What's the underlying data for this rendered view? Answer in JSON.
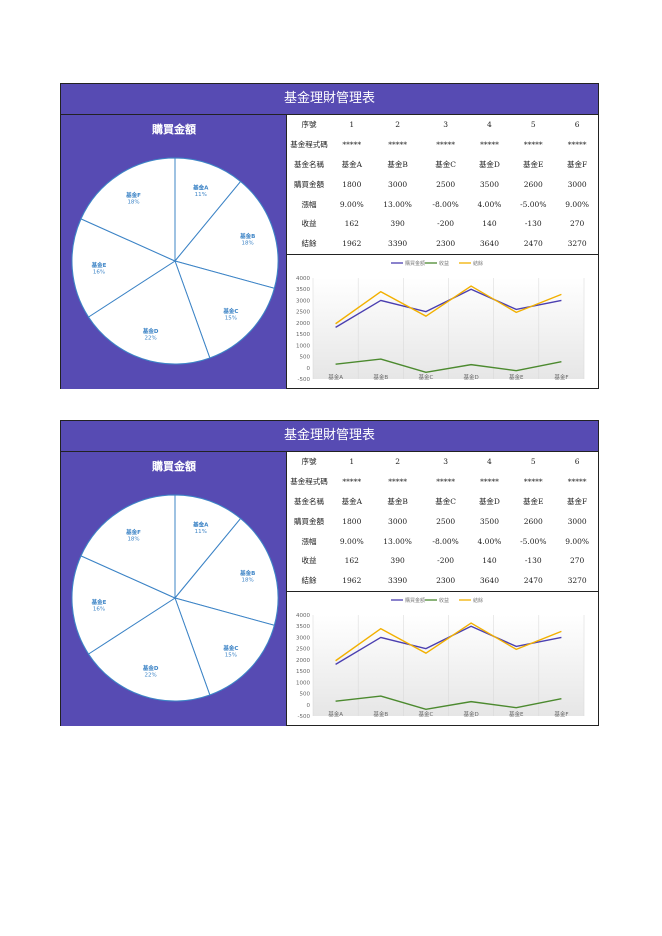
{
  "cards": [
    {
      "title": "基金理財管理表",
      "pie_title": "購買金額",
      "rows": [
        {
          "label": "序號",
          "values": [
            "1",
            "2",
            "3",
            "4",
            "5",
            "6"
          ]
        },
        {
          "label": "基金程式碼",
          "values": [
            "*****",
            "*****",
            "*****",
            "*****",
            "*****",
            "*****"
          ]
        },
        {
          "label": "基金名稱",
          "values": [
            "基金A",
            "基金B",
            "基金C",
            "基金D",
            "基金E",
            "基金F"
          ]
        },
        {
          "label": "購買金額",
          "values": [
            "1800",
            "3000",
            "2500",
            "3500",
            "2600",
            "3000"
          ]
        },
        {
          "label": "漲幅",
          "values": [
            "9.00%",
            "13.00%",
            "-8.00%",
            "4.00%",
            "-5.00%",
            "9.00%"
          ]
        },
        {
          "label": "收益",
          "values": [
            "162",
            "390",
            "-200",
            "140",
            "-130",
            "270"
          ]
        },
        {
          "label": "結餘",
          "values": [
            "1962",
            "3390",
            "2300",
            "3640",
            "2470",
            "3270"
          ]
        }
      ]
    },
    {
      "title": "基金理財管理表",
      "pie_title": "購買金額",
      "rows": [
        {
          "label": "序號",
          "values": [
            "1",
            "2",
            "3",
            "4",
            "5",
            "6"
          ]
        },
        {
          "label": "基金程式碼",
          "values": [
            "*****",
            "*****",
            "*****",
            "*****",
            "*****",
            "*****"
          ]
        },
        {
          "label": "基金名稱",
          "values": [
            "基金A",
            "基金B",
            "基金C",
            "基金D",
            "基金E",
            "基金F"
          ]
        },
        {
          "label": "購買金額",
          "values": [
            "1800",
            "3000",
            "2500",
            "3500",
            "2600",
            "3000"
          ]
        },
        {
          "label": "漲幅",
          "values": [
            "9.00%",
            "13.00%",
            "-8.00%",
            "4.00%",
            "-5.00%",
            "9.00%"
          ]
        },
        {
          "label": "收益",
          "values": [
            "162",
            "390",
            "-200",
            "140",
            "-130",
            "270"
          ]
        },
        {
          "label": "結餘",
          "values": [
            "1962",
            "3390",
            "2300",
            "3640",
            "2470",
            "3270"
          ]
        }
      ]
    }
  ],
  "chart_data": [
    {
      "type": "pie",
      "title": "購買金額",
      "categories": [
        "基金A",
        "基金B",
        "基金C",
        "基金D",
        "基金E",
        "基金F"
      ],
      "values": [
        1800,
        3000,
        2500,
        3500,
        2600,
        3000
      ],
      "percent_labels": [
        "11%",
        "18%",
        "15%",
        "22%",
        "16%",
        "18%"
      ],
      "colors": {
        "fill": "#ffffff",
        "stroke": "#3d84c6",
        "label": "#3d84c6"
      }
    },
    {
      "type": "line",
      "categories": [
        "基金A",
        "基金B",
        "基金C",
        "基金D",
        "基金E",
        "基金F"
      ],
      "series": [
        {
          "name": "購買金額",
          "color": "#4b3fb0",
          "values": [
            1800,
            3000,
            2500,
            3500,
            2600,
            3000
          ]
        },
        {
          "name": "收益",
          "color": "#4c8a2f",
          "values": [
            162,
            390,
            -200,
            140,
            -130,
            270
          ]
        },
        {
          "name": "結餘",
          "color": "#f2b000",
          "values": [
            1962,
            3390,
            2300,
            3640,
            2470,
            3270
          ]
        }
      ],
      "yticks": [
        -500,
        0,
        500,
        1000,
        1500,
        2000,
        2500,
        3000,
        3500,
        4000
      ],
      "ylim": [
        -500,
        4000
      ],
      "legend": "top"
    },
    {
      "type": "pie",
      "title": "購買金額",
      "categories": [
        "基金A",
        "基金B",
        "基金C",
        "基金D",
        "基金E",
        "基金F"
      ],
      "values": [
        1800,
        3000,
        2500,
        3500,
        2600,
        3000
      ],
      "percent_labels": [
        "11%",
        "18%",
        "15%",
        "22%",
        "16%",
        "18%"
      ],
      "colors": {
        "fill": "#ffffff",
        "stroke": "#3d84c6",
        "label": "#3d84c6"
      }
    },
    {
      "type": "line",
      "categories": [
        "基金A",
        "基金B",
        "基金C",
        "基金D",
        "基金E",
        "基金F"
      ],
      "series": [
        {
          "name": "購買金額",
          "color": "#4b3fb0",
          "values": [
            1800,
            3000,
            2500,
            3500,
            2600,
            3000
          ]
        },
        {
          "name": "收益",
          "color": "#4c8a2f",
          "values": [
            162,
            390,
            -200,
            140,
            -130,
            270
          ]
        },
        {
          "name": "結餘",
          "color": "#f2b000",
          "values": [
            1962,
            3390,
            2300,
            3640,
            2470,
            3270
          ]
        }
      ],
      "yticks": [
        -500,
        0,
        500,
        1000,
        1500,
        2000,
        2500,
        3000,
        3500,
        4000
      ],
      "ylim": [
        -500,
        4000
      ],
      "legend": "top"
    }
  ]
}
